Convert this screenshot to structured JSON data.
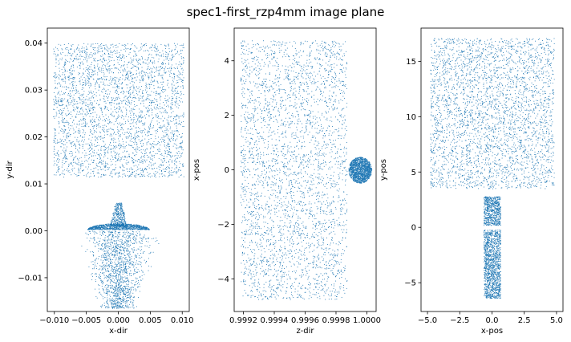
{
  "title": "spec1-first_rzp4mm image plane",
  "point_color": "#1f77b4",
  "chart_data": [
    {
      "type": "scatter",
      "xlabel": "x-dir",
      "ylabel": "y-dir",
      "xlim": [
        -0.0111,
        0.0111
      ],
      "ylim": [
        -0.0172,
        0.0432
      ],
      "xticks": [
        -0.01,
        -0.005,
        0.0,
        0.005,
        0.01
      ],
      "xtick_labels": [
        "−0.010",
        "−0.005",
        "0.000",
        "0.005",
        "0.010"
      ],
      "yticks": [
        -0.01,
        0.0,
        0.01,
        0.02,
        0.03,
        0.04
      ],
      "ytick_labels": [
        "−0.01",
        "0.00",
        "0.01",
        "0.02",
        "0.03",
        "0.04"
      ],
      "clusters": [
        {
          "shape": "rect",
          "x": [
            -0.0102,
            0.0102
          ],
          "y": [
            0.0115,
            0.04
          ],
          "count": 3200
        },
        {
          "shape": "trapezoid",
          "y": [
            -0.0165,
            0.0
          ],
          "half_width_top": 0.006,
          "half_width_bottom": 0.0025,
          "count": 1400
        },
        {
          "shape": "dome",
          "x": [
            -0.0048,
            0.0048
          ],
          "y": [
            0.0003,
            0.0016
          ],
          "count": 900
        },
        {
          "shape": "spike",
          "x": [
            -0.0014,
            0.0014
          ],
          "y": [
            0.001,
            0.006
          ],
          "count": 400
        }
      ]
    },
    {
      "type": "scatter",
      "xlabel": "z-dir",
      "ylabel": "x-pos",
      "xlim": [
        0.99914,
        1.00006
      ],
      "ylim": [
        -5.2,
        5.2
      ],
      "xticks": [
        0.9992,
        0.9994,
        0.9996,
        0.9998,
        1.0
      ],
      "xtick_labels": [
        "0.9992",
        "0.9994",
        "0.9996",
        "0.9998",
        "1.0000"
      ],
      "yticks": [
        -4,
        -2,
        0,
        2,
        4
      ],
      "ytick_labels": [
        "−4",
        "−2",
        "0",
        "2",
        "4"
      ],
      "clusters": [
        {
          "shape": "rect",
          "x": [
            0.99918,
            0.99987
          ],
          "y": [
            -4.75,
            4.75
          ],
          "count": 3400
        },
        {
          "shape": "blob",
          "x": [
            0.99988,
            1.00003
          ],
          "y": [
            -0.48,
            0.48
          ],
          "count": 1500
        }
      ]
    },
    {
      "type": "scatter",
      "xlabel": "x-pos",
      "ylabel": "y-pos",
      "xlim": [
        -5.5,
        5.5
      ],
      "ylim": [
        -7.6,
        18.0
      ],
      "xticks": [
        -5.0,
        -2.5,
        0.0,
        2.5,
        5.0
      ],
      "xtick_labels": [
        "−5.0",
        "−2.5",
        "0.0",
        "2.5",
        "5.0"
      ],
      "yticks": [
        -5,
        0,
        5,
        10,
        15
      ],
      "ytick_labels": [
        "−5",
        "0",
        "5",
        "10",
        "15"
      ],
      "clusters": [
        {
          "shape": "rect",
          "x": [
            -4.8,
            4.8
          ],
          "y": [
            3.5,
            17.1
          ],
          "count": 3400
        },
        {
          "shape": "column",
          "x": [
            -0.65,
            0.65
          ],
          "y": [
            0.2,
            2.8
          ],
          "count": 700
        },
        {
          "shape": "column",
          "x": [
            -0.65,
            0.65
          ],
          "y": [
            -6.4,
            -0.2
          ],
          "count": 1400
        }
      ]
    }
  ]
}
